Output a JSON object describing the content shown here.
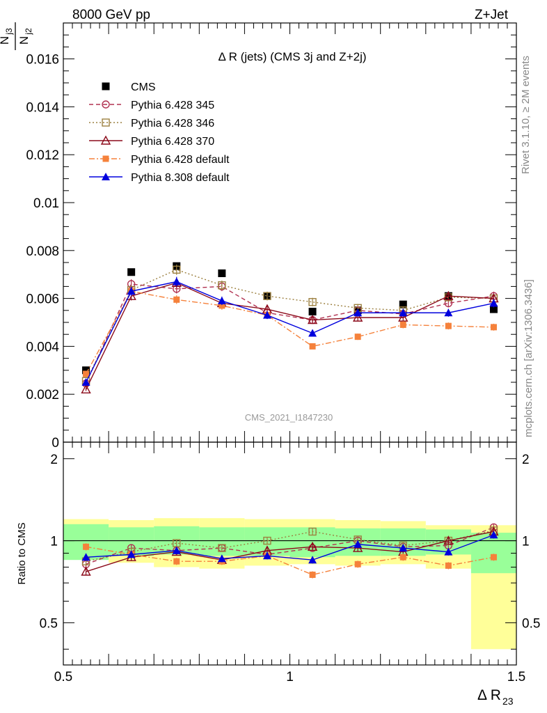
{
  "header": {
    "left": "8000 GeV pp",
    "right": "Z+Jet"
  },
  "side_labels": {
    "rivet": "Rivet 3.1.10, ≥ 2M events",
    "mcplots": "mcplots.cern.ch [arXiv:1306.3436]"
  },
  "watermark": "CMS_2021_I1847230",
  "colors": {
    "cms": "#000000",
    "p345": "#b03050",
    "p346": "#9c8040",
    "p370": "#8b0a1a",
    "p6def": "#f5813b",
    "p8def": "#0000dd",
    "band_inner": "#99ff99",
    "band_outer": "#ffff99"
  },
  "chart_data": [
    {
      "type": "scatter",
      "title": "Δ R (jets) (CMS 3j and Z+2j)",
      "ylabel_num": "N",
      "ylabel_num_sub": "j3",
      "ylabel_den": "N",
      "ylabel_den_sub": "j2",
      "xlim": [
        0.5,
        1.5
      ],
      "ylim": [
        0,
        0.0175
      ],
      "yticks": [
        "0",
        "0.002",
        "0.004",
        "0.006",
        "0.008",
        "0.01",
        "0.012",
        "0.014",
        "0.016"
      ],
      "x": [
        0.55,
        0.65,
        0.75,
        0.85,
        0.95,
        1.05,
        1.15,
        1.25,
        1.35,
        1.45
      ],
      "series": [
        {
          "name": "CMS",
          "key": "cms",
          "values": [
            0.003,
            0.0071,
            0.00735,
            0.00705,
            0.0061,
            0.00545,
            0.0055,
            0.00575,
            0.0061,
            0.00555
          ]
        },
        {
          "name": "Pythia 6.428 345",
          "key": "p345",
          "values": [
            0.00245,
            0.0066,
            0.0064,
            0.0065,
            0.0054,
            0.0051,
            0.0055,
            0.00535,
            0.0058,
            0.0061
          ]
        },
        {
          "name": "Pythia 6.428 346",
          "key": "p346",
          "values": [
            0.00255,
            0.00635,
            0.0072,
            0.00655,
            0.0061,
            0.00585,
            0.0056,
            0.0055,
            0.00605,
            0.006
          ]
        },
        {
          "name": "Pythia 6.428 370",
          "key": "p370",
          "values": [
            0.0022,
            0.0061,
            0.00665,
            0.0058,
            0.00555,
            0.0051,
            0.0052,
            0.0052,
            0.0061,
            0.006
          ]
        },
        {
          "name": "Pythia 6.428 default",
          "key": "p6def",
          "values": [
            0.00285,
            0.0063,
            0.00595,
            0.0057,
            0.0053,
            0.004,
            0.0044,
            0.0049,
            0.00485,
            0.0048
          ]
        },
        {
          "name": "Pythia 8.308 default",
          "key": "p8def",
          "values": [
            0.0025,
            0.0063,
            0.0067,
            0.0059,
            0.0053,
            0.00455,
            0.0054,
            0.0054,
            0.0054,
            0.0058
          ]
        }
      ]
    },
    {
      "type": "scatter",
      "ylabel": "Ratio to CMS",
      "xlabel": "Δ R",
      "xlabel_sub": "23",
      "xlim": [
        0.5,
        1.5
      ],
      "ylim": [
        0.35,
        2.3
      ],
      "xticks": [
        "0.5",
        "1",
        "1.5"
      ],
      "yticks": [
        "0.5",
        "1",
        "2"
      ],
      "band_inner": [
        [
          0.85,
          1.15
        ],
        [
          0.88,
          1.12
        ],
        [
          0.89,
          1.13
        ],
        [
          0.88,
          1.12
        ],
        [
          0.88,
          1.12
        ],
        [
          0.87,
          1.12
        ],
        [
          0.88,
          1.11
        ],
        [
          0.88,
          1.11
        ],
        [
          0.89,
          1.1
        ],
        [
          0.76,
          1.07
        ]
      ],
      "band_outer": [
        [
          0.86,
          1.2
        ],
        [
          0.83,
          1.19
        ],
        [
          0.8,
          1.21
        ],
        [
          0.79,
          1.21
        ],
        [
          0.81,
          1.2
        ],
        [
          0.82,
          1.2
        ],
        [
          0.81,
          1.19
        ],
        [
          0.82,
          1.18
        ],
        [
          0.79,
          1.14
        ],
        [
          0.4,
          1.14
        ]
      ],
      "series": [
        {
          "name": "Pythia 6.428 345",
          "key": "p345",
          "values": [
            0.82,
            0.94,
            0.92,
            0.94,
            0.89,
            0.94,
            1.0,
            0.95,
            0.96,
            1.12
          ]
        },
        {
          "name": "Pythia 6.428 346",
          "key": "p346",
          "values": [
            0.84,
            0.91,
            0.98,
            0.94,
            1.0,
            1.08,
            1.01,
            0.96,
            1.0,
            1.09
          ]
        },
        {
          "name": "Pythia 6.428 370",
          "key": "p370",
          "values": [
            0.77,
            0.87,
            0.91,
            0.85,
            0.92,
            0.95,
            0.94,
            0.91,
            1.0,
            1.08
          ]
        },
        {
          "name": "Pythia 6.428 default",
          "key": "p6def",
          "values": [
            0.95,
            0.89,
            0.84,
            0.84,
            0.88,
            0.75,
            0.82,
            0.87,
            0.81,
            0.87
          ]
        },
        {
          "name": "Pythia 8.308 default",
          "key": "p8def",
          "values": [
            0.87,
            0.89,
            0.92,
            0.86,
            0.88,
            0.85,
            0.97,
            0.94,
            0.91,
            1.05
          ]
        }
      ]
    }
  ]
}
